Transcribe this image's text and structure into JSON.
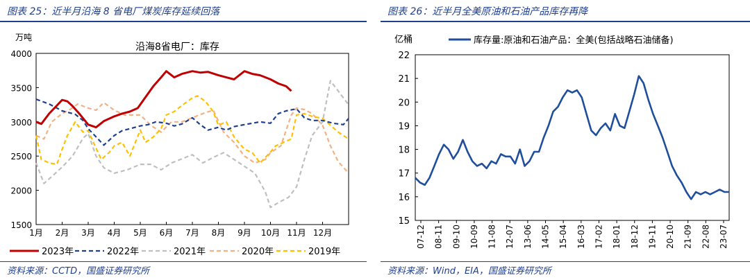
{
  "left": {
    "title": "图表 25：近半月沿海 8 省电厂煤炭库存延续回落",
    "source": "资料来源：CCTD，国盛证券研究所",
    "chart_data": {
      "type": "line",
      "title": "沿海8省电厂：库存",
      "ylabel": "万吨",
      "ylim": [
        1500,
        4000
      ],
      "yticks": [
        "1500",
        "2000",
        "2500",
        "3000",
        "3500",
        "4000"
      ],
      "xlim": [
        1,
        13
      ],
      "xticks": [
        "1月",
        "2月",
        "3月",
        "4月",
        "5月",
        "6月",
        "7月",
        "8月",
        "9月",
        "10月",
        "11月",
        "12月"
      ],
      "legend_position": "bottom",
      "series": [
        {
          "name": "2023年",
          "color": "#c00000",
          "style": "solid",
          "x": [
            1.0,
            1.2,
            1.5,
            1.8,
            2.0,
            2.2,
            2.4,
            2.7,
            3.0,
            3.3,
            3.6,
            4.0,
            4.3,
            4.6,
            4.9,
            5.2,
            5.5,
            5.8,
            6.0,
            6.3,
            6.6,
            7.0,
            7.3,
            7.6,
            8.0,
            8.3,
            8.6,
            9.0,
            9.3,
            9.6,
            10.0,
            10.3,
            10.6,
            10.8
          ],
          "y": [
            3000,
            2970,
            3120,
            3240,
            3320,
            3300,
            3230,
            3100,
            2960,
            2920,
            3010,
            3080,
            3120,
            3150,
            3200,
            3360,
            3520,
            3650,
            3740,
            3650,
            3700,
            3740,
            3720,
            3730,
            3680,
            3650,
            3620,
            3740,
            3700,
            3680,
            3620,
            3560,
            3520,
            3450
          ]
        },
        {
          "name": "2022年",
          "color": "#1f3f8f",
          "style": "dash",
          "x": [
            1.0,
            1.5,
            2.0,
            2.5,
            2.8,
            3.0,
            3.3,
            3.6,
            4.0,
            4.3,
            4.6,
            5.0,
            5.3,
            5.6,
            6.0,
            6.3,
            6.6,
            7.0,
            7.3,
            7.6,
            8.0,
            8.3,
            8.6,
            9.0,
            9.3,
            9.6,
            10.0,
            10.3,
            10.6,
            11.0,
            11.3,
            11.6,
            12.0,
            12.4,
            12.8,
            13.0
          ],
          "y": [
            3330,
            3260,
            3160,
            3110,
            3020,
            2900,
            2780,
            2660,
            2800,
            2870,
            2900,
            2940,
            2960,
            3000,
            2980,
            2940,
            2970,
            3060,
            2960,
            2880,
            2920,
            2880,
            2930,
            2960,
            2980,
            3000,
            2980,
            3120,
            3160,
            3190,
            3060,
            3020,
            3020,
            2980,
            2960,
            3050
          ]
        },
        {
          "name": "2021年",
          "color": "#bfbfbf",
          "style": "dash",
          "x": [
            1.0,
            1.3,
            1.6,
            2.0,
            2.4,
            2.8,
            3.0,
            3.3,
            3.6,
            4.0,
            4.5,
            5.0,
            5.4,
            5.8,
            6.2,
            6.6,
            7.0,
            7.4,
            7.8,
            8.2,
            8.6,
            9.0,
            9.4,
            9.8,
            10.0,
            10.3,
            10.7,
            11.0,
            11.3,
            11.6,
            12.0,
            12.3,
            12.6,
            13.0
          ],
          "y": [
            2400,
            2100,
            2200,
            2340,
            2500,
            2760,
            2830,
            2500,
            2330,
            2250,
            2300,
            2380,
            2380,
            2300,
            2400,
            2460,
            2520,
            2400,
            2480,
            2550,
            2450,
            2350,
            2250,
            1980,
            1750,
            1820,
            1900,
            2050,
            2450,
            2800,
            3000,
            3600,
            3450,
            3250
          ]
        },
        {
          "name": "2020年",
          "color": "#f4b183",
          "style": "dash",
          "x": [
            1.0,
            1.3,
            1.6,
            2.0,
            2.3,
            2.6,
            3.0,
            3.3,
            3.6,
            4.0,
            4.4,
            4.7,
            5.0,
            5.4,
            5.8,
            6.2,
            6.6,
            7.0,
            7.4,
            7.8,
            8.2,
            8.6,
            9.0,
            9.4,
            9.8,
            10.0,
            10.4,
            10.8,
            11.0,
            11.3,
            11.6,
            12.0,
            12.3,
            12.6,
            13.0
          ],
          "y": [
            2800,
            2750,
            3000,
            3120,
            3180,
            3260,
            3200,
            3170,
            3280,
            3170,
            3100,
            3100,
            3100,
            2950,
            2850,
            3000,
            3000,
            3060,
            3120,
            3170,
            2850,
            2700,
            2500,
            2400,
            2450,
            2550,
            2650,
            3100,
            3200,
            3180,
            3120,
            2950,
            2650,
            2420,
            2250
          ]
        },
        {
          "name": "2019年",
          "color": "#ffc000",
          "style": "dash",
          "x": [
            1.0,
            1.2,
            1.5,
            1.8,
            2.0,
            2.2,
            2.5,
            2.8,
            3.0,
            3.2,
            3.5,
            3.8,
            4.0,
            4.3,
            4.6,
            5.0,
            5.2,
            5.5,
            5.8,
            6.0,
            6.3,
            6.6,
            7.0,
            7.2,
            7.5,
            7.8,
            8.0,
            8.3,
            8.6,
            9.0,
            9.3,
            9.6,
            10.0,
            10.2,
            10.5,
            10.8,
            11.0,
            11.3,
            11.6,
            12.0,
            12.3,
            12.6,
            13.0
          ],
          "y": [
            2800,
            2450,
            2400,
            2380,
            2600,
            2800,
            3000,
            2850,
            2870,
            2700,
            2450,
            2550,
            2650,
            2700,
            2500,
            2880,
            2700,
            2780,
            2900,
            3100,
            3150,
            3240,
            3350,
            3380,
            3300,
            3150,
            2950,
            3000,
            2780,
            2600,
            2550,
            2400,
            2560,
            2650,
            2700,
            2750,
            3100,
            3120,
            3080,
            3050,
            2950,
            2850,
            2750
          ]
        }
      ]
    }
  },
  "right": {
    "title": "图表 26：近半月全美原油和石油产品库存再降",
    "source": "资料来源：Wind，EIA，国盛证券研究所",
    "chart_data": {
      "type": "line",
      "ylabel": "亿桶",
      "ylim": [
        15,
        22
      ],
      "yticks": [
        "15",
        "16",
        "17",
        "18",
        "19",
        "20",
        "21",
        "22"
      ],
      "xlim": [
        0,
        33
      ],
      "xticks": [
        "07-12",
        "08-11",
        "09-10",
        "10-09",
        "11-08",
        "12-07",
        "13-06",
        "14-05",
        "15-04",
        "16-03",
        "17-02",
        "18-01",
        "18-12",
        "19-11",
        "20-10",
        "21-09",
        "22-08",
        "23-07"
      ],
      "legend_position": "top",
      "series": [
        {
          "name": "库存量:原油和石油产品：全美(包括战略石油储备)",
          "color": "#1f4e9e",
          "x": [
            0,
            0.5,
            1.0,
            1.5,
            2.0,
            2.5,
            3.0,
            3.5,
            4.0,
            4.5,
            5.0,
            5.5,
            6.0,
            6.5,
            7.0,
            7.5,
            8.0,
            8.5,
            9.0,
            9.5,
            10.0,
            10.5,
            11.0,
            11.5,
            12.0,
            12.5,
            13.0,
            13.5,
            14.0,
            14.5,
            15.0,
            15.5,
            16.0,
            16.5,
            17.0,
            17.5,
            18.0,
            18.5,
            19.0,
            19.5,
            20.0,
            20.5,
            21.0,
            21.5,
            22.0,
            22.5,
            23.0,
            23.5,
            24.0,
            24.5,
            25.0,
            25.5,
            26.0,
            26.5,
            27.0,
            27.5,
            28.0,
            28.5,
            29.0,
            29.5,
            30.0,
            30.5,
            31.0,
            31.5,
            32.0,
            32.5,
            33.0
          ],
          "y": [
            16.8,
            16.6,
            16.5,
            16.8,
            17.3,
            17.8,
            18.2,
            18.0,
            17.6,
            17.9,
            18.4,
            17.9,
            17.5,
            17.3,
            17.4,
            17.2,
            17.5,
            17.4,
            17.8,
            17.7,
            17.7,
            17.4,
            18.0,
            17.3,
            17.5,
            17.9,
            17.9,
            18.5,
            19.0,
            19.6,
            19.8,
            20.2,
            20.5,
            20.4,
            20.5,
            20.2,
            19.5,
            18.8,
            18.6,
            18.9,
            19.1,
            18.8,
            19.5,
            19.0,
            18.9,
            19.6,
            20.3,
            21.1,
            20.8,
            20.1,
            19.5,
            19.0,
            18.5,
            17.9,
            17.3,
            16.9,
            16.6,
            16.2,
            15.9,
            16.2,
            16.1,
            16.2,
            16.1,
            16.2,
            16.3,
            16.2,
            16.2
          ]
        }
      ]
    }
  }
}
